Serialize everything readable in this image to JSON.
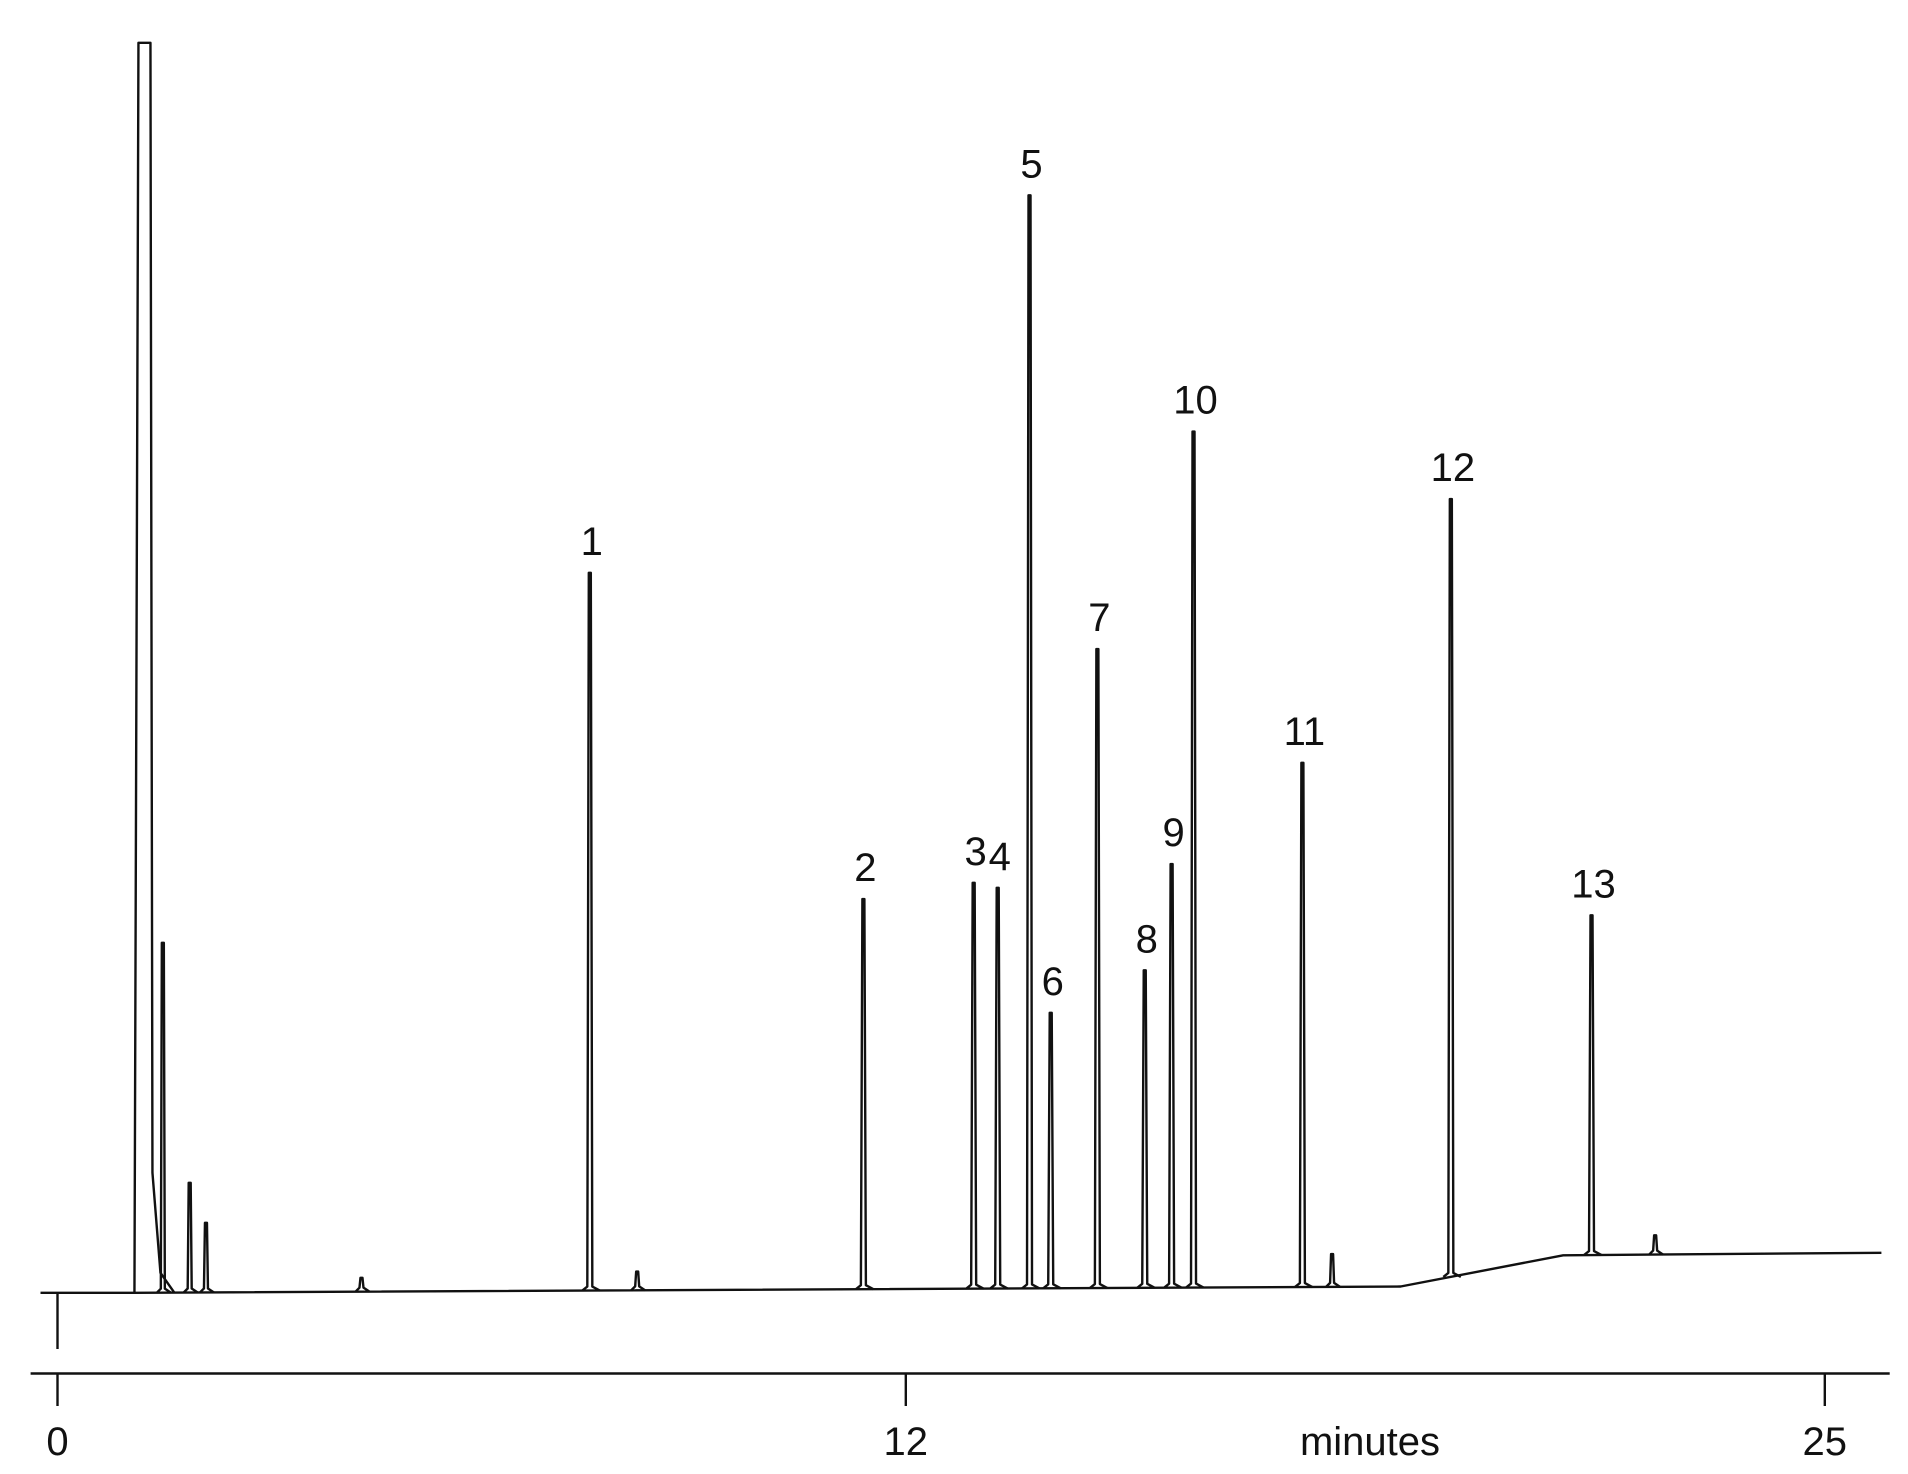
{
  "chart_data": {
    "type": "chromatogram",
    "xlabel": "minutes",
    "xlim": [
      -0.24,
      25.9
    ],
    "xticks": [
      0,
      12,
      25
    ],
    "ylim": [
      0,
      100
    ],
    "color": "#111111",
    "solvent_peak": {
      "x": 1.23,
      "value": 100
    },
    "baseline": {
      "x": [
        -0.24,
        1.1,
        19.0,
        21.3,
        25.8
      ],
      "values": [
        0,
        0,
        0.5,
        3.0,
        3.2
      ]
    },
    "peaks": {
      "labels": [
        "1",
        "2",
        "3",
        "4",
        "5",
        "6",
        "7",
        "8",
        "9",
        "10",
        "11",
        "12",
        "13"
      ],
      "x": [
        7.53,
        11.4,
        12.96,
        13.3,
        13.75,
        14.05,
        14.71,
        15.38,
        15.76,
        16.07,
        17.61,
        19.71,
        21.7
      ],
      "values": [
        57.6,
        31.5,
        32.8,
        32.4,
        87.8,
        22.4,
        51.5,
        25.8,
        34.3,
        68.9,
        42.4,
        63.5,
        30.2
      ]
    },
    "minor_peaks": {
      "x": [
        1.49,
        1.87,
        2.1,
        4.3,
        8.2,
        18.03,
        22.6
      ],
      "values": [
        28.0,
        8.8,
        5.6,
        1.2,
        1.7,
        3.1,
        4.6
      ]
    }
  }
}
